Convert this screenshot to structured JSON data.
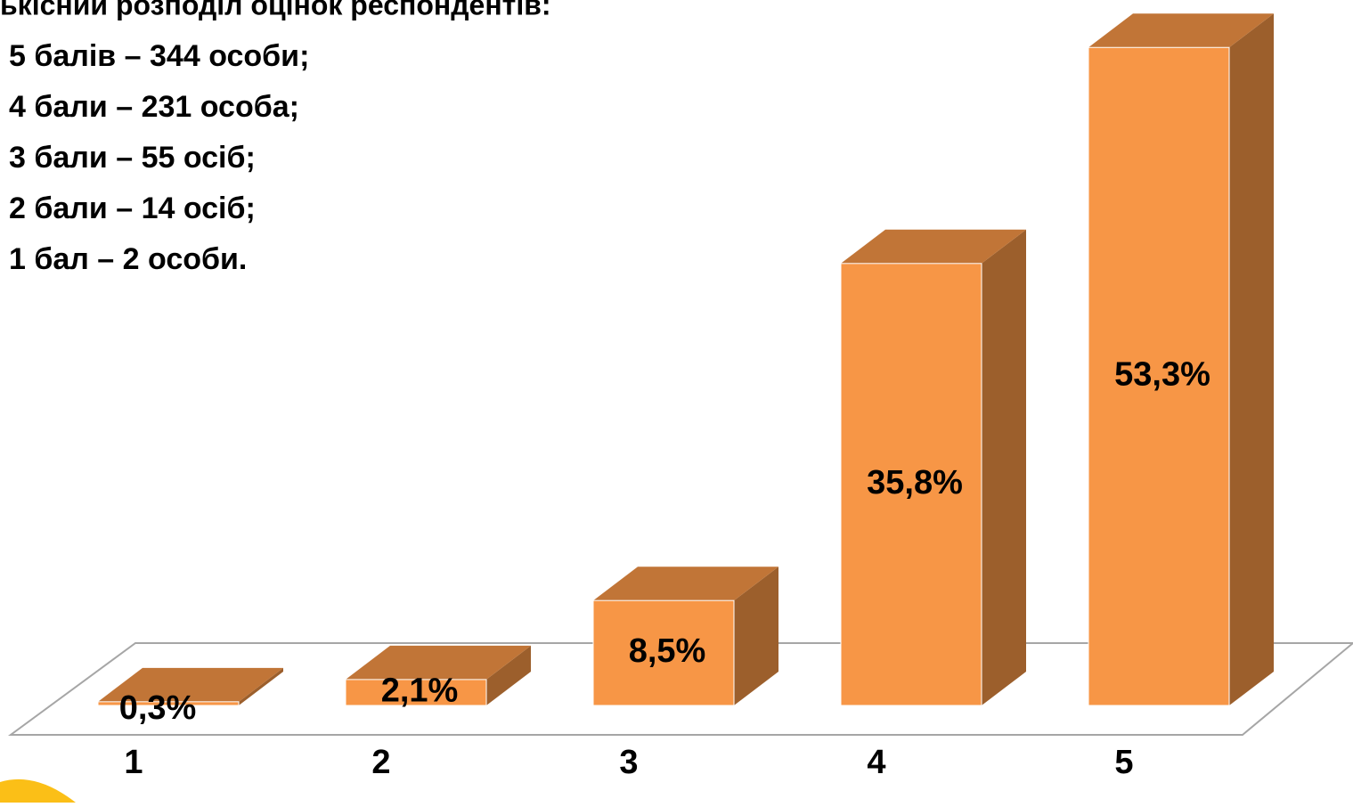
{
  "chart_data": {
    "type": "bar3d",
    "title": "ькісний розподіл оцінок респондентів:",
    "annotations": [
      "5 балів – 344 особи;",
      "4 бали – 231 особа;",
      "3 бали – 55 осіб;",
      "2 бали – 14 осіб;",
      "1 бал – 2 особи."
    ],
    "categories": [
      "1",
      "2",
      "3",
      "4",
      "5"
    ],
    "values": [
      0.3,
      2.1,
      8.5,
      35.8,
      53.3
    ],
    "value_labels": [
      "0,3%",
      "2,1%",
      "8,5%",
      "35,8%",
      "53,3%"
    ],
    "color": "#f79646"
  }
}
